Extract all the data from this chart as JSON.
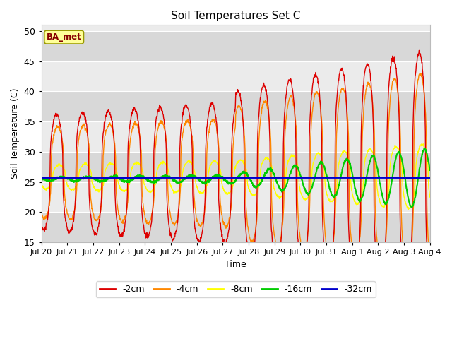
{
  "title": "Soil Temperatures Set C",
  "xlabel": "Time",
  "ylabel": "Soil Temperature (C)",
  "ylim": [
    15,
    51
  ],
  "yticks": [
    15,
    20,
    25,
    30,
    35,
    40,
    45,
    50
  ],
  "label_text": "BA_met",
  "series_colors": {
    "-2cm": "#dd0000",
    "-4cm": "#ff8800",
    "-8cm": "#ffff00",
    "-16cm": "#00cc00",
    "-32cm": "#0000cc"
  },
  "background_color": "#ffffff",
  "plot_bg_color": "#ebebeb",
  "band_light_color": "#d8d8d8",
  "grid_color": "#ffffff",
  "x_tick_labels": [
    "Jul 20",
    "Jul 21",
    "Jul 22",
    "Jul 23",
    "Jul 24",
    "Jul 25",
    "Jul 26",
    "Jul 27",
    "Jul 28",
    "Jul 29",
    "Jul 30",
    "Jul 31",
    "Aug 1",
    "Aug 2",
    "Aug 3",
    "Aug 4"
  ],
  "num_days": 15
}
